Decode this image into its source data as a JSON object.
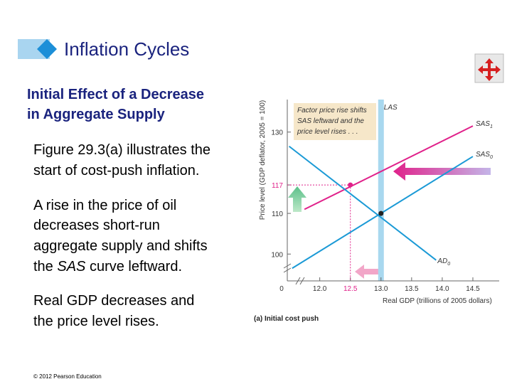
{
  "slide": {
    "title": "Inflation Cycles",
    "heading": [
      "Initial Effect of a Decrease",
      "in Aggregate Supply"
    ],
    "paragraphs": [
      [
        "Figure 29.3(a) illustrates the",
        "start of cost-push inflation."
      ],
      [
        "A rise in the price of oil",
        "decreases short-run",
        "aggregate supply and shifts",
        [
          "the ",
          "SAS",
          " curve leftward."
        ]
      ],
      [
        "Real GDP decreases and",
        "the price level rises."
      ]
    ],
    "footer": "© 2012 Pearson Education"
  },
  "chart_data": {
    "type": "line",
    "caption": "(a) Initial cost push",
    "y_label": "Price level (GDP deflator, 2005 = 100)",
    "x_label": "Real GDP (trillions of 2005 dollars)",
    "origin_label": "0",
    "annotation": [
      "Factor price rise shifts",
      "SAS leftward and the",
      "price level rises . . ."
    ],
    "xlim": [
      11.47,
      14.93
    ],
    "ylim": [
      93.4,
      138
    ],
    "xticks": [
      {
        "value": 12,
        "label": "12.0"
      },
      12.5,
      {
        "value": 13,
        "label": "13.0"
      },
      13.5,
      {
        "value": 14,
        "label": "14.0"
      },
      14.5
    ],
    "yticks": [
      100,
      110,
      117,
      130
    ],
    "las": {
      "x": 13,
      "label": "LAS",
      "color": "#a8d8ef"
    },
    "series": [
      {
        "label": {
          "main": "SAS",
          "sub": "1"
        },
        "color": "#e0218a",
        "x": [
          11.75,
          14.5
        ],
        "values": [
          111,
          131.5
        ]
      },
      {
        "label": {
          "main": "SAS",
          "sub": "0"
        },
        "color": "#1b9ad6",
        "x": [
          11.55,
          14.5
        ],
        "values": [
          96.5,
          124
        ]
      },
      {
        "label": {
          "main": "AD",
          "sub": "0"
        },
        "color": "#1b9ad6",
        "x": [
          11.5,
          13.9
        ],
        "values": [
          126.5,
          98.5
        ]
      }
    ],
    "points": [
      {
        "x": 13,
        "y": 110,
        "color": "#222222"
      },
      {
        "x": 12.5,
        "y": 117,
        "color": "#e0218a"
      }
    ]
  }
}
